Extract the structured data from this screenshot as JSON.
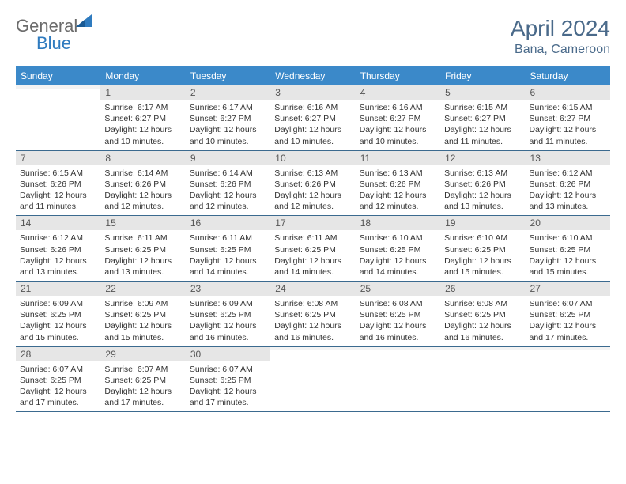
{
  "logo": {
    "text1": "General",
    "text2": "Blue"
  },
  "title": "April 2024",
  "location": "Bana, Cameroon",
  "colors": {
    "header_bg": "#3b89c9",
    "header_text": "#ffffff",
    "daynum_bg": "#e6e6e6",
    "daynum_empty_bg": "#f3f3f3",
    "border": "#3b6a8f",
    "title_color": "#4a6a8a",
    "logo_gray": "#6b6b6b",
    "logo_blue": "#2f7bbf"
  },
  "weekdays": [
    "Sunday",
    "Monday",
    "Tuesday",
    "Wednesday",
    "Thursday",
    "Friday",
    "Saturday"
  ],
  "weeks": [
    {
      "days": [
        {
          "num": "",
          "sunrise": "",
          "sunset": "",
          "daylight": ""
        },
        {
          "num": "1",
          "sunrise": "Sunrise: 6:17 AM",
          "sunset": "Sunset: 6:27 PM",
          "daylight": "Daylight: 12 hours and 10 minutes."
        },
        {
          "num": "2",
          "sunrise": "Sunrise: 6:17 AM",
          "sunset": "Sunset: 6:27 PM",
          "daylight": "Daylight: 12 hours and 10 minutes."
        },
        {
          "num": "3",
          "sunrise": "Sunrise: 6:16 AM",
          "sunset": "Sunset: 6:27 PM",
          "daylight": "Daylight: 12 hours and 10 minutes."
        },
        {
          "num": "4",
          "sunrise": "Sunrise: 6:16 AM",
          "sunset": "Sunset: 6:27 PM",
          "daylight": "Daylight: 12 hours and 10 minutes."
        },
        {
          "num": "5",
          "sunrise": "Sunrise: 6:15 AM",
          "sunset": "Sunset: 6:27 PM",
          "daylight": "Daylight: 12 hours and 11 minutes."
        },
        {
          "num": "6",
          "sunrise": "Sunrise: 6:15 AM",
          "sunset": "Sunset: 6:27 PM",
          "daylight": "Daylight: 12 hours and 11 minutes."
        }
      ]
    },
    {
      "days": [
        {
          "num": "7",
          "sunrise": "Sunrise: 6:15 AM",
          "sunset": "Sunset: 6:26 PM",
          "daylight": "Daylight: 12 hours and 11 minutes."
        },
        {
          "num": "8",
          "sunrise": "Sunrise: 6:14 AM",
          "sunset": "Sunset: 6:26 PM",
          "daylight": "Daylight: 12 hours and 12 minutes."
        },
        {
          "num": "9",
          "sunrise": "Sunrise: 6:14 AM",
          "sunset": "Sunset: 6:26 PM",
          "daylight": "Daylight: 12 hours and 12 minutes."
        },
        {
          "num": "10",
          "sunrise": "Sunrise: 6:13 AM",
          "sunset": "Sunset: 6:26 PM",
          "daylight": "Daylight: 12 hours and 12 minutes."
        },
        {
          "num": "11",
          "sunrise": "Sunrise: 6:13 AM",
          "sunset": "Sunset: 6:26 PM",
          "daylight": "Daylight: 12 hours and 12 minutes."
        },
        {
          "num": "12",
          "sunrise": "Sunrise: 6:13 AM",
          "sunset": "Sunset: 6:26 PM",
          "daylight": "Daylight: 12 hours and 13 minutes."
        },
        {
          "num": "13",
          "sunrise": "Sunrise: 6:12 AM",
          "sunset": "Sunset: 6:26 PM",
          "daylight": "Daylight: 12 hours and 13 minutes."
        }
      ]
    },
    {
      "days": [
        {
          "num": "14",
          "sunrise": "Sunrise: 6:12 AM",
          "sunset": "Sunset: 6:26 PM",
          "daylight": "Daylight: 12 hours and 13 minutes."
        },
        {
          "num": "15",
          "sunrise": "Sunrise: 6:11 AM",
          "sunset": "Sunset: 6:25 PM",
          "daylight": "Daylight: 12 hours and 13 minutes."
        },
        {
          "num": "16",
          "sunrise": "Sunrise: 6:11 AM",
          "sunset": "Sunset: 6:25 PM",
          "daylight": "Daylight: 12 hours and 14 minutes."
        },
        {
          "num": "17",
          "sunrise": "Sunrise: 6:11 AM",
          "sunset": "Sunset: 6:25 PM",
          "daylight": "Daylight: 12 hours and 14 minutes."
        },
        {
          "num": "18",
          "sunrise": "Sunrise: 6:10 AM",
          "sunset": "Sunset: 6:25 PM",
          "daylight": "Daylight: 12 hours and 14 minutes."
        },
        {
          "num": "19",
          "sunrise": "Sunrise: 6:10 AM",
          "sunset": "Sunset: 6:25 PM",
          "daylight": "Daylight: 12 hours and 15 minutes."
        },
        {
          "num": "20",
          "sunrise": "Sunrise: 6:10 AM",
          "sunset": "Sunset: 6:25 PM",
          "daylight": "Daylight: 12 hours and 15 minutes."
        }
      ]
    },
    {
      "days": [
        {
          "num": "21",
          "sunrise": "Sunrise: 6:09 AM",
          "sunset": "Sunset: 6:25 PM",
          "daylight": "Daylight: 12 hours and 15 minutes."
        },
        {
          "num": "22",
          "sunrise": "Sunrise: 6:09 AM",
          "sunset": "Sunset: 6:25 PM",
          "daylight": "Daylight: 12 hours and 15 minutes."
        },
        {
          "num": "23",
          "sunrise": "Sunrise: 6:09 AM",
          "sunset": "Sunset: 6:25 PM",
          "daylight": "Daylight: 12 hours and 16 minutes."
        },
        {
          "num": "24",
          "sunrise": "Sunrise: 6:08 AM",
          "sunset": "Sunset: 6:25 PM",
          "daylight": "Daylight: 12 hours and 16 minutes."
        },
        {
          "num": "25",
          "sunrise": "Sunrise: 6:08 AM",
          "sunset": "Sunset: 6:25 PM",
          "daylight": "Daylight: 12 hours and 16 minutes."
        },
        {
          "num": "26",
          "sunrise": "Sunrise: 6:08 AM",
          "sunset": "Sunset: 6:25 PM",
          "daylight": "Daylight: 12 hours and 16 minutes."
        },
        {
          "num": "27",
          "sunrise": "Sunrise: 6:07 AM",
          "sunset": "Sunset: 6:25 PM",
          "daylight": "Daylight: 12 hours and 17 minutes."
        }
      ]
    },
    {
      "days": [
        {
          "num": "28",
          "sunrise": "Sunrise: 6:07 AM",
          "sunset": "Sunset: 6:25 PM",
          "daylight": "Daylight: 12 hours and 17 minutes."
        },
        {
          "num": "29",
          "sunrise": "Sunrise: 6:07 AM",
          "sunset": "Sunset: 6:25 PM",
          "daylight": "Daylight: 12 hours and 17 minutes."
        },
        {
          "num": "30",
          "sunrise": "Sunrise: 6:07 AM",
          "sunset": "Sunset: 6:25 PM",
          "daylight": "Daylight: 12 hours and 17 minutes."
        },
        {
          "num": "",
          "sunrise": "",
          "sunset": "",
          "daylight": ""
        },
        {
          "num": "",
          "sunrise": "",
          "sunset": "",
          "daylight": ""
        },
        {
          "num": "",
          "sunrise": "",
          "sunset": "",
          "daylight": ""
        },
        {
          "num": "",
          "sunrise": "",
          "sunset": "",
          "daylight": ""
        }
      ]
    }
  ]
}
